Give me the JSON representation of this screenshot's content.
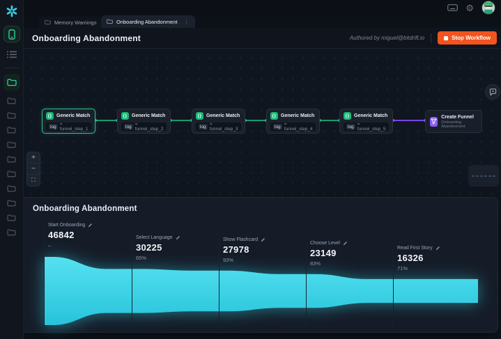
{
  "sidebar": {
    "logo_icon": "bitdrift-logo",
    "device_icon": "phone-icon",
    "list_icon": "session-list-icon",
    "active_folder_icon": "folder-icon",
    "gray_folder_count": 10
  },
  "topbar": {
    "tabs": [
      {
        "label": "Memory Warnings",
        "active": false
      },
      {
        "label": "Onboarding Abandonment",
        "active": true
      }
    ],
    "tab_menu_glyph": "⋮",
    "new_tab_label": "+",
    "gear_glyph": "⚙"
  },
  "workflow_header": {
    "title": "Onboarding Abandonment",
    "authored_by": "Authored by miguel@bitdrift.io",
    "stop_button_label": "Stop Workflow"
  },
  "canvas": {
    "nodes": [
      {
        "title": "Generic Match",
        "badge_key": "log",
        "badge_value": "= funnel_step_1"
      },
      {
        "title": "Generic Match",
        "badge_key": "log",
        "badge_value": "= funnel_step_2"
      },
      {
        "title": "Generic Match",
        "badge_key": "log",
        "badge_value": "= funnel_step_3"
      },
      {
        "title": "Generic Match",
        "badge_key": "log",
        "badge_value": "= funnel_step_4"
      },
      {
        "title": "Generic Match",
        "badge_key": "log",
        "badge_value": "= funnel_step_5"
      }
    ],
    "output_node": {
      "title": "Create Funnel",
      "subtitle": "Onboarding Abandonment"
    },
    "zoom_controls": {
      "zoom_in": "+",
      "zoom_out": "−",
      "fit_view": "⛶"
    },
    "minimap_node_count": 6
  },
  "funnel_panel": {
    "title": "Onboarding Abandonment",
    "steps": [
      {
        "label": "Start Onboarding",
        "value": "46842",
        "sub": "–"
      },
      {
        "label": "Select Language",
        "value": "30225",
        "sub": "65%"
      },
      {
        "label": "Show Flashcard",
        "value": "27978",
        "sub": "93%"
      },
      {
        "label": "Choose Level",
        "value": "23149",
        "sub": "83%"
      },
      {
        "label": "Read First Story",
        "value": "16326",
        "sub": "71%"
      }
    ]
  },
  "chart_data": {
    "type": "area",
    "subtype": "funnel",
    "title": "Onboarding Abandonment",
    "categories": [
      "Start Onboarding",
      "Select Language",
      "Show Flashcard",
      "Choose Level",
      "Read First Story"
    ],
    "values": [
      46842,
      30225,
      27978,
      23149,
      16326
    ],
    "conversion_pct": [
      null,
      65,
      93,
      83,
      71
    ],
    "fill_color_top": "#55e1f1",
    "fill_color_bottom": "#27c3da",
    "legend": "none",
    "grid": "off"
  },
  "colors": {
    "accent_orange": "#f1541e",
    "node_green": "#17b877",
    "edge_green": "#169a6e",
    "edge_purple": "#7644e0",
    "funnel_cyan": "#38d8ea"
  }
}
